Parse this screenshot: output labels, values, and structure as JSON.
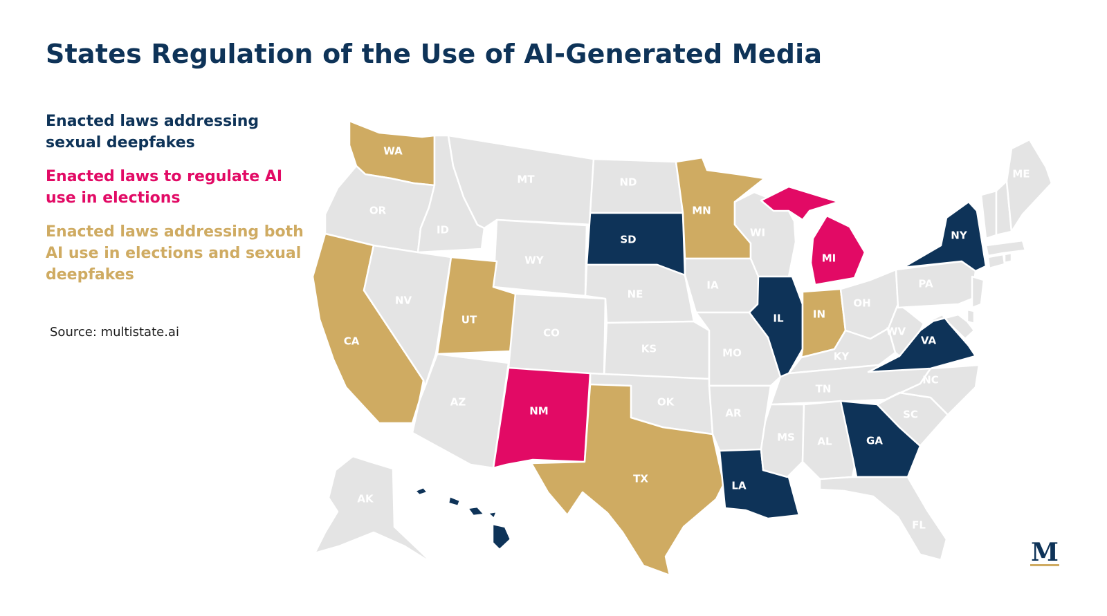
{
  "title": "States Regulation of the Use of AI-Generated Media",
  "colors": {
    "sexual_deepfakes": "#0e3358",
    "elections": "#e20a65",
    "both": "#cfab62",
    "none": "#e4e4e4",
    "label_none": "#ffffff",
    "label_colored": "#ffffff"
  },
  "legend": [
    {
      "key": "sexual_deepfakes",
      "label": "Enacted laws addressing sexual deepfakes"
    },
    {
      "key": "elections",
      "label": "Enacted laws to regulate AI use in elections"
    },
    {
      "key": "both",
      "label": "Enacted laws addressing both AI use in elections and sexual deepfakes"
    }
  ],
  "source": "Source: multistate.ai",
  "logo_letter": "M",
  "states": [
    {
      "abbr": "WA",
      "category": "both"
    },
    {
      "abbr": "OR",
      "category": "none"
    },
    {
      "abbr": "CA",
      "category": "both"
    },
    {
      "abbr": "ID",
      "category": "none"
    },
    {
      "abbr": "NV",
      "category": "none"
    },
    {
      "abbr": "MT",
      "category": "none"
    },
    {
      "abbr": "WY",
      "category": "none"
    },
    {
      "abbr": "UT",
      "category": "both"
    },
    {
      "abbr": "AZ",
      "category": "none"
    },
    {
      "abbr": "CO",
      "category": "none"
    },
    {
      "abbr": "NM",
      "category": "elections"
    },
    {
      "abbr": "ND",
      "category": "none"
    },
    {
      "abbr": "SD",
      "category": "sexual_deepfakes"
    },
    {
      "abbr": "NE",
      "category": "none"
    },
    {
      "abbr": "KS",
      "category": "none"
    },
    {
      "abbr": "OK",
      "category": "none"
    },
    {
      "abbr": "TX",
      "category": "both"
    },
    {
      "abbr": "MN",
      "category": "both"
    },
    {
      "abbr": "IA",
      "category": "none"
    },
    {
      "abbr": "MO",
      "category": "none"
    },
    {
      "abbr": "AR",
      "category": "none"
    },
    {
      "abbr": "LA",
      "category": "sexual_deepfakes"
    },
    {
      "abbr": "WI",
      "category": "none"
    },
    {
      "abbr": "IL",
      "category": "sexual_deepfakes"
    },
    {
      "abbr": "MI",
      "category": "elections"
    },
    {
      "abbr": "IN",
      "category": "both"
    },
    {
      "abbr": "OH",
      "category": "none"
    },
    {
      "abbr": "KY",
      "category": "none"
    },
    {
      "abbr": "TN",
      "category": "none"
    },
    {
      "abbr": "MS",
      "category": "none"
    },
    {
      "abbr": "AL",
      "category": "none"
    },
    {
      "abbr": "GA",
      "category": "sexual_deepfakes"
    },
    {
      "abbr": "FL",
      "category": "none"
    },
    {
      "abbr": "SC",
      "category": "none"
    },
    {
      "abbr": "NC",
      "category": "none"
    },
    {
      "abbr": "VA",
      "category": "sexual_deepfakes"
    },
    {
      "abbr": "WV",
      "category": "none"
    },
    {
      "abbr": "PA",
      "category": "none"
    },
    {
      "abbr": "NY",
      "category": "sexual_deepfakes"
    },
    {
      "abbr": "NJ",
      "category": "none"
    },
    {
      "abbr": "DE",
      "category": "none"
    },
    {
      "abbr": "MD",
      "category": "none"
    },
    {
      "abbr": "CT",
      "category": "none"
    },
    {
      "abbr": "RI",
      "category": "none"
    },
    {
      "abbr": "MA",
      "category": "none"
    },
    {
      "abbr": "VT",
      "category": "none"
    },
    {
      "abbr": "NH",
      "category": "none"
    },
    {
      "abbr": "ME",
      "category": "none"
    },
    {
      "abbr": "AK",
      "category": "none"
    },
    {
      "abbr": "HI",
      "category": "sexual_deepfakes"
    }
  ]
}
